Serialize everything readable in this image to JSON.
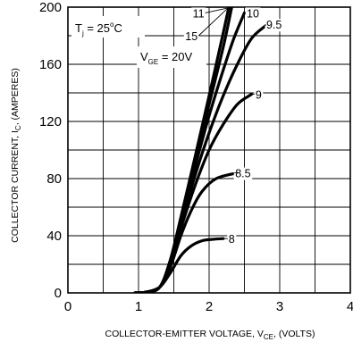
{
  "chart_data": {
    "type": "line",
    "xlabel": "COLLECTOR-EMITTER VOLTAGE, V",
    "xlabel_sub": "CE",
    "xlabel_suffix": ", (VOLTS)",
    "ylabel": "COLLECTOR CURRENT, I",
    "ylabel_sub": "C",
    "ylabel_suffix": ", (AMPERES)",
    "xlim": [
      0,
      4
    ],
    "ylim": [
      0,
      200
    ],
    "xticks": [
      "0",
      "1",
      "2",
      "3",
      "4"
    ],
    "yticks": [
      "0",
      "40",
      "80",
      "120",
      "160",
      "200"
    ],
    "grid": true,
    "annotations": {
      "tj_main": "T",
      "tj_sub": "j",
      "tj_value": " = 25",
      "tj_deg": "o",
      "tj_unit": "C",
      "vge_main": "V",
      "vge_sub": "GE",
      "vge_value": " = 20V"
    },
    "series": [
      {
        "name": "8",
        "x": [
          0.95,
          1.1,
          1.3,
          1.45,
          1.6,
          1.75,
          1.9,
          2.05,
          2.2
        ],
        "y": [
          0,
          0.5,
          4,
          14,
          26,
          33,
          36.5,
          37.5,
          38
        ]
      },
      {
        "name": "8.5",
        "x": [
          0.95,
          1.1,
          1.3,
          1.45,
          1.6,
          1.75,
          1.9,
          2.1,
          2.4
        ],
        "y": [
          0,
          0.5,
          4,
          18,
          40,
          58,
          71,
          80,
          84
        ]
      },
      {
        "name": "9",
        "x": [
          0.95,
          1.1,
          1.3,
          1.45,
          1.6,
          1.8,
          2.0,
          2.2,
          2.4,
          2.6
        ],
        "y": [
          0,
          0.5,
          4,
          20,
          45,
          75,
          100,
          118,
          132,
          139
        ]
      },
      {
        "name": "9.5",
        "x": [
          0.95,
          1.1,
          1.3,
          1.45,
          1.6,
          1.8,
          2.0,
          2.2,
          2.4,
          2.6,
          2.8
        ],
        "y": [
          0,
          0.5,
          4,
          21,
          48,
          82,
          112,
          138,
          160,
          178,
          187
        ]
      },
      {
        "name": "10",
        "x": [
          0.95,
          1.1,
          1.3,
          1.45,
          1.6,
          1.8,
          2.0,
          2.2,
          2.35,
          2.5
        ],
        "y": [
          0,
          0.5,
          4,
          22,
          50,
          88,
          124,
          156,
          178,
          196
        ]
      },
      {
        "name": "11",
        "x": [
          0.95,
          1.1,
          1.3,
          1.45,
          1.6,
          1.8,
          2.0,
          2.2,
          2.32
        ],
        "y": [
          0,
          0.5,
          4,
          23,
          52,
          92,
          132,
          172,
          200
        ]
      },
      {
        "name": "15",
        "x": [
          0.95,
          1.1,
          1.3,
          1.45,
          1.6,
          1.8,
          2.0,
          2.2,
          2.28
        ],
        "y": [
          0,
          0.5,
          4,
          23,
          53,
          95,
          138,
          182,
          200
        ]
      }
    ],
    "labels": [
      {
        "text": "8",
        "x": 2.32,
        "y": 38
      },
      {
        "text": "8.5",
        "x": 2.48,
        "y": 84
      },
      {
        "text": "9",
        "x": 2.7,
        "y": 139
      },
      {
        "text": "9.5",
        "x": 2.92,
        "y": 188
      },
      {
        "text": "10",
        "x": 2.62,
        "y": 196
      },
      {
        "text": "11",
        "x": 1.85,
        "y": 196
      },
      {
        "text": "15",
        "x": 1.75,
        "y": 180
      }
    ]
  }
}
